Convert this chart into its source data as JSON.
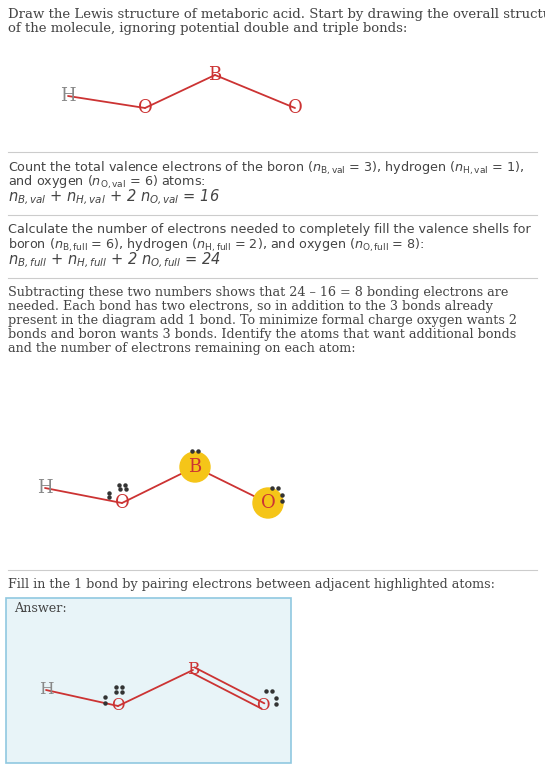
{
  "bg_color": "#ffffff",
  "atom_color": "#cc3333",
  "h_color": "#888888",
  "highlight_color": "#f5c518",
  "answer_bg": "#e8f4f8",
  "answer_border": "#90c8e0",
  "separator_color": "#cccccc",
  "dot_color": "#333333",
  "text_color": "#444444",
  "title_line1": "Draw the Lewis structure of metaboric acid. Start by drawing the overall structure",
  "title_line2": "of the molecule, ignoring potential double and triple bonds:",
  "sec1_line1": "Count the total valence electrons of the boron (",
  "sec1_line2": "and oxygen (",
  "sec2_line1": "Calculate the number of electrons needed to completely fill the valence shells for",
  "sec2_line2": "boron (",
  "sec3_line1": "Subtracting these two numbers shows that 24 – 16 = 8 bonding electrons are",
  "sec3_line2": "needed. Each bond has two electrons, so in addition to the 3 bonds already",
  "sec3_line3": "present in the diagram add 1 bond. To minimize formal charge oxygen wants 2",
  "sec3_line4": "bonds and boron wants 3 bonds. Identify the atoms that want additional bonds",
  "sec3_line5": "and the number of electrons remaining on each atom:",
  "sec4_line1": "Fill in the 1 bond by pairing electrons between adjacent highlighted atoms:",
  "answer_label": "Answer:"
}
